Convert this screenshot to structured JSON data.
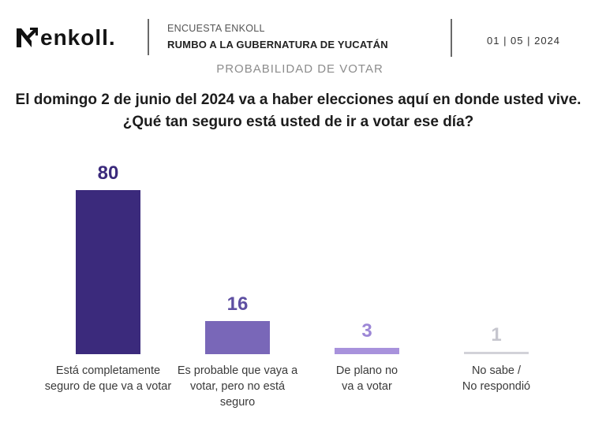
{
  "header": {
    "logo_text": "enkoll.",
    "logo_icon": "enkoll-logo-icon",
    "survey_label": "ENCUESTA ENKOLL",
    "survey_title": "RUMBO A LA GUBERNATURA DE YUCATÁN",
    "date": "01 | 05 | 2024"
  },
  "chart_data": {
    "type": "bar",
    "title": "PROBABILIDAD DE VOTAR",
    "question": [
      "El domingo 2 de junio del 2024 va a haber elecciones aquí en donde usted vive.",
      "¿Qué tan seguro está usted de ir a votar ese día?"
    ],
    "categories": [
      "Está completamente\nseguro de que va a votar",
      "Es probable que vaya a\nvotar, pero no está\nseguro",
      "De plano no\nva a votar",
      "No sabe /\nNo respondió"
    ],
    "values": [
      80,
      16,
      3,
      1
    ],
    "colors": {
      "bars": [
        "#3b2a7c",
        "#7967b8",
        "#a892dc",
        "#d2d2d8"
      ],
      "value_labels": [
        "#3b2a7c",
        "#5e4fa2",
        "#9c86d6",
        "#c6c6ce"
      ]
    },
    "grid": false,
    "legend": "none"
  }
}
